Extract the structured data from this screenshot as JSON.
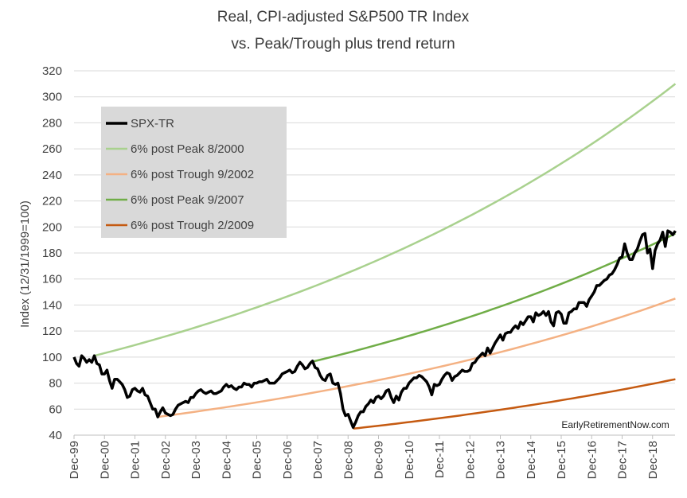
{
  "chart_data": {
    "type": "line",
    "title_line1": "Real, CPI-adjusted S&P500 TR Index",
    "title_line2": "vs. Peak/Trough plus trend return",
    "ylabel": "Index (12/31/1999=100)",
    "xlabel": "",
    "ylim": [
      40,
      320
    ],
    "yticks": [
      40,
      60,
      80,
      100,
      120,
      140,
      160,
      180,
      200,
      220,
      240,
      260,
      280,
      300,
      320
    ],
    "xlim": [
      1999.917,
      2018.917
    ],
    "xtick_labels": [
      "Dec-99",
      "Dec-00",
      "Dec-01",
      "Dec-02",
      "Dec-03",
      "Dec-04",
      "Dec-05",
      "Dec-06",
      "Dec-07",
      "Dec-08",
      "Dec-09",
      "Dec-10",
      "Dec-11",
      "Dec-12",
      "Dec-13",
      "Dec-14",
      "Dec-15",
      "Dec-16",
      "Dec-17",
      "Dec-18"
    ],
    "grid": "horizontal",
    "legend_position": "top-left",
    "credit": "EarlyRetirementNow.com",
    "series": [
      {
        "name": "SPX-TR",
        "color": "#000000",
        "width": 3.5,
        "points": [
          [
            1999.917,
            100
          ],
          [
            2000.0,
            95
          ],
          [
            2000.083,
            93
          ],
          [
            2000.167,
            101
          ],
          [
            2000.25,
            99
          ],
          [
            2000.333,
            96
          ],
          [
            2000.417,
            98
          ],
          [
            2000.5,
            96
          ],
          [
            2000.583,
            101
          ],
          [
            2000.667,
            95
          ],
          [
            2000.75,
            94
          ],
          [
            2000.833,
            87
          ],
          [
            2000.917,
            87
          ],
          [
            2001.0,
            90
          ],
          [
            2001.083,
            82
          ],
          [
            2001.167,
            76
          ],
          [
            2001.25,
            83
          ],
          [
            2001.333,
            83
          ],
          [
            2001.417,
            81
          ],
          [
            2001.5,
            79
          ],
          [
            2001.583,
            75
          ],
          [
            2001.667,
            69
          ],
          [
            2001.75,
            70
          ],
          [
            2001.833,
            75
          ],
          [
            2001.917,
            76
          ],
          [
            2002.0,
            74
          ],
          [
            2002.083,
            73
          ],
          [
            2002.167,
            76
          ],
          [
            2002.25,
            71
          ],
          [
            2002.333,
            70
          ],
          [
            2002.417,
            65
          ],
          [
            2002.5,
            60
          ],
          [
            2002.583,
            60
          ],
          [
            2002.667,
            54
          ],
          [
            2002.75,
            58
          ],
          [
            2002.833,
            61
          ],
          [
            2002.917,
            57
          ],
          [
            2003.0,
            56
          ],
          [
            2003.083,
            55
          ],
          [
            2003.167,
            56
          ],
          [
            2003.25,
            60
          ],
          [
            2003.333,
            63
          ],
          [
            2003.417,
            64
          ],
          [
            2003.5,
            65
          ],
          [
            2003.583,
            66
          ],
          [
            2003.667,
            65
          ],
          [
            2003.75,
            69
          ],
          [
            2003.833,
            69
          ],
          [
            2003.917,
            72
          ],
          [
            2004.0,
            74
          ],
          [
            2004.083,
            75
          ],
          [
            2004.167,
            73
          ],
          [
            2004.25,
            72
          ],
          [
            2004.333,
            73
          ],
          [
            2004.417,
            74
          ],
          [
            2004.5,
            72
          ],
          [
            2004.583,
            72
          ],
          [
            2004.667,
            73
          ],
          [
            2004.75,
            74
          ],
          [
            2004.833,
            77
          ],
          [
            2004.917,
            79
          ],
          [
            2005.0,
            77
          ],
          [
            2005.083,
            78
          ],
          [
            2005.167,
            76
          ],
          [
            2005.25,
            75
          ],
          [
            2005.333,
            77
          ],
          [
            2005.417,
            77
          ],
          [
            2005.5,
            80
          ],
          [
            2005.583,
            79
          ],
          [
            2005.667,
            79
          ],
          [
            2005.75,
            77
          ],
          [
            2005.833,
            80
          ],
          [
            2005.917,
            80
          ],
          [
            2006.0,
            81
          ],
          [
            2006.083,
            81
          ],
          [
            2006.167,
            82
          ],
          [
            2006.25,
            83
          ],
          [
            2006.333,
            80
          ],
          [
            2006.417,
            80
          ],
          [
            2006.5,
            80
          ],
          [
            2006.583,
            82
          ],
          [
            2006.667,
            84
          ],
          [
            2006.75,
            87
          ],
          [
            2006.833,
            88
          ],
          [
            2006.917,
            89
          ],
          [
            2007.0,
            90
          ],
          [
            2007.083,
            88
          ],
          [
            2007.167,
            89
          ],
          [
            2007.25,
            93
          ],
          [
            2007.333,
            96
          ],
          [
            2007.417,
            94
          ],
          [
            2007.5,
            91
          ],
          [
            2007.583,
            92
          ],
          [
            2007.667,
            95
          ],
          [
            2007.75,
            97
          ],
          [
            2007.833,
            92
          ],
          [
            2007.917,
            91
          ],
          [
            2008.0,
            86
          ],
          [
            2008.083,
            83
          ],
          [
            2008.167,
            82
          ],
          [
            2008.25,
            86
          ],
          [
            2008.333,
            87
          ],
          [
            2008.417,
            80
          ],
          [
            2008.5,
            79
          ],
          [
            2008.583,
            80
          ],
          [
            2008.667,
            72
          ],
          [
            2008.75,
            60
          ],
          [
            2008.833,
            55
          ],
          [
            2008.917,
            56
          ],
          [
            2009.0,
            51
          ],
          [
            2009.083,
            46
          ],
          [
            2009.167,
            50
          ],
          [
            2009.25,
            55
          ],
          [
            2009.333,
            58
          ],
          [
            2009.417,
            58
          ],
          [
            2009.5,
            62
          ],
          [
            2009.583,
            64
          ],
          [
            2009.667,
            67
          ],
          [
            2009.75,
            65
          ],
          [
            2009.833,
            69
          ],
          [
            2009.917,
            70
          ],
          [
            2010.0,
            68
          ],
          [
            2010.083,
            70
          ],
          [
            2010.167,
            74
          ],
          [
            2010.25,
            75
          ],
          [
            2010.333,
            69
          ],
          [
            2010.417,
            65
          ],
          [
            2010.5,
            70
          ],
          [
            2010.583,
            67
          ],
          [
            2010.667,
            73
          ],
          [
            2010.75,
            76
          ],
          [
            2010.833,
            76
          ],
          [
            2010.917,
            80
          ],
          [
            2011.0,
            82
          ],
          [
            2011.083,
            84
          ],
          [
            2011.167,
            84
          ],
          [
            2011.25,
            86
          ],
          [
            2011.333,
            85
          ],
          [
            2011.417,
            83
          ],
          [
            2011.5,
            81
          ],
          [
            2011.583,
            77
          ],
          [
            2011.667,
            71
          ],
          [
            2011.75,
            79
          ],
          [
            2011.833,
            78
          ],
          [
            2011.917,
            79
          ],
          [
            2012.0,
            83
          ],
          [
            2012.083,
            86
          ],
          [
            2012.167,
            88
          ],
          [
            2012.25,
            87
          ],
          [
            2012.333,
            82
          ],
          [
            2012.417,
            85
          ],
          [
            2012.5,
            86
          ],
          [
            2012.583,
            88
          ],
          [
            2012.667,
            90
          ],
          [
            2012.75,
            89
          ],
          [
            2012.833,
            89
          ],
          [
            2012.917,
            90
          ],
          [
            2013.0,
            95
          ],
          [
            2013.083,
            96
          ],
          [
            2013.167,
            99
          ],
          [
            2013.25,
            101
          ],
          [
            2013.333,
            103
          ],
          [
            2013.417,
            101
          ],
          [
            2013.5,
            107
          ],
          [
            2013.583,
            103
          ],
          [
            2013.667,
            107
          ],
          [
            2013.75,
            111
          ],
          [
            2013.833,
            114
          ],
          [
            2013.917,
            117
          ],
          [
            2014.0,
            113
          ],
          [
            2014.083,
            118
          ],
          [
            2014.167,
            119
          ],
          [
            2014.25,
            119
          ],
          [
            2014.333,
            122
          ],
          [
            2014.417,
            124
          ],
          [
            2014.5,
            122
          ],
          [
            2014.583,
            127
          ],
          [
            2014.667,
            125
          ],
          [
            2014.75,
            128
          ],
          [
            2014.833,
            131
          ],
          [
            2014.917,
            131
          ],
          [
            2015.0,
            127
          ],
          [
            2015.083,
            134
          ],
          [
            2015.167,
            132
          ],
          [
            2015.25,
            133
          ],
          [
            2015.333,
            135
          ],
          [
            2015.417,
            132
          ],
          [
            2015.5,
            135
          ],
          [
            2015.583,
            127
          ],
          [
            2015.667,
            124
          ],
          [
            2015.75,
            134
          ],
          [
            2015.833,
            135
          ],
          [
            2015.917,
            133
          ],
          [
            2016.0,
            126
          ],
          [
            2016.083,
            126
          ],
          [
            2016.167,
            134
          ],
          [
            2016.25,
            135
          ],
          [
            2016.333,
            137
          ],
          [
            2016.417,
            137
          ],
          [
            2016.5,
            142
          ],
          [
            2016.583,
            142
          ],
          [
            2016.667,
            142
          ],
          [
            2016.75,
            139
          ],
          [
            2016.833,
            144
          ],
          [
            2016.917,
            147
          ],
          [
            2017.0,
            150
          ],
          [
            2017.083,
            155
          ],
          [
            2017.167,
            155
          ],
          [
            2017.25,
            157
          ],
          [
            2017.333,
            159
          ],
          [
            2017.417,
            160
          ],
          [
            2017.5,
            163
          ],
          [
            2017.583,
            164
          ],
          [
            2017.667,
            167
          ],
          [
            2017.75,
            171
          ],
          [
            2017.833,
            176
          ],
          [
            2017.917,
            177
          ],
          [
            2018.0,
            187
          ],
          [
            2018.083,
            180
          ],
          [
            2018.167,
            175
          ],
          [
            2018.25,
            175
          ],
          [
            2018.333,
            180
          ],
          [
            2018.417,
            183
          ],
          [
            2018.5,
            189
          ],
          [
            2018.583,
            194
          ],
          [
            2018.667,
            195
          ],
          [
            2018.75,
            180
          ],
          [
            2018.833,
            183
          ],
          [
            2018.917,
            168
          ],
          [
            2019.0,
            182
          ],
          [
            2019.083,
            187
          ],
          [
            2019.167,
            190
          ],
          [
            2019.25,
            196
          ],
          [
            2019.333,
            185
          ],
          [
            2019.417,
            197
          ],
          [
            2019.5,
            196
          ],
          [
            2019.583,
            194
          ],
          [
            2019.667,
            197
          ]
        ]
      },
      {
        "name": "6% post Peak 8/2000",
        "color": "#a9d18e",
        "width": 2.5,
        "start_x": 2000.583,
        "start_y": 101,
        "end_x": 2019.667,
        "end_y": 310
      },
      {
        "name": "6% post Trough 9/2002",
        "color": "#f4b183",
        "width": 2.5,
        "start_x": 2002.667,
        "start_y": 54,
        "end_x": 2019.667,
        "end_y": 145
      },
      {
        "name": "6% post Peak 9/2007",
        "color": "#70ad47",
        "width": 2.5,
        "start_x": 2007.667,
        "start_y": 96,
        "end_x": 2019.667,
        "end_y": 195
      },
      {
        "name": "6% post Trough 2/2009",
        "color": "#c55a11",
        "width": 2.5,
        "start_x": 2009.083,
        "start_y": 45,
        "end_x": 2019.667,
        "end_y": 83
      }
    ]
  }
}
